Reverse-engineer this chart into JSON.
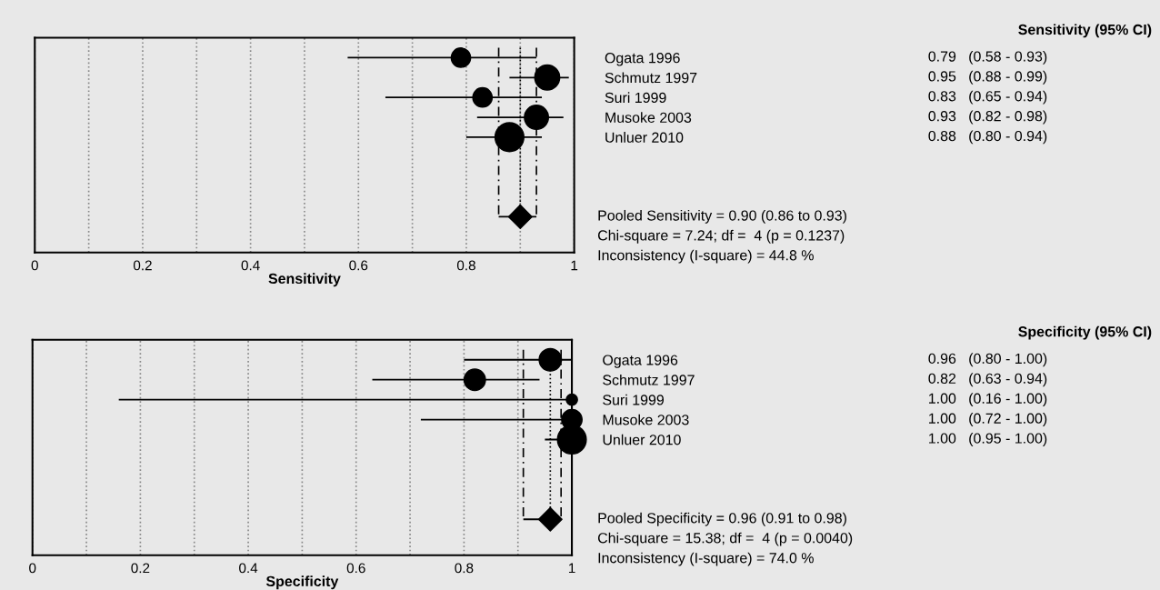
{
  "chart_data": [
    {
      "type": "bubble",
      "orientation": "horizontal",
      "xlabel": "Sensitivity",
      "categories": [
        "Ogata 1996",
        "Schmutz 1997",
        "Suri 1999",
        "Musoke 2003",
        "Unluer 2010",
        null,
        null,
        null,
        null
      ],
      "xlim": [
        0,
        1
      ],
      "xticks": [
        0,
        {
          "value": 0.1,
          "label": null
        },
        0.2,
        {
          "value": 0.3,
          "label": null
        },
        0.4,
        {
          "value": 0.5,
          "label": null
        },
        0.6,
        {
          "value": 0.7,
          "label": null
        },
        0.8,
        {
          "value": 0.9,
          "label": null
        },
        1
      ],
      "grid": "x",
      "legend": false,
      "series": [
        {
          "color": "#000000",
          "values": [
            0.79,
            0.95,
            0.83,
            0.93,
            0.88,
            null,
            null,
            null,
            null
          ],
          "sizes": [
            0.45,
            0.75,
            0.45,
            0.7,
            1.0,
            null,
            null,
            null,
            null
          ],
          "errors": [
            [
              0.58,
              0.93
            ],
            [
              0.88,
              0.99
            ],
            [
              0.65,
              0.94
            ],
            [
              0.82,
              0.98
            ],
            [
              0.8,
              0.94
            ],
            null,
            null,
            null,
            null
          ],
          "value_labels": [
            "0.79   (0.58 - 0.93)",
            "0.95   (0.88 - 0.99)",
            "0.83   (0.65 - 0.94)",
            "0.93   (0.82 - 0.98)",
            "0.88   (0.80 - 0.94)",
            null,
            null,
            null,
            null
          ]
        },
        {
          "type": "scatter",
          "marker": "diamond",
          "color": "#000000",
          "values": [
            null,
            null,
            null,
            null,
            null,
            null,
            null,
            null,
            0.9
          ],
          "errors": [
            null,
            null,
            null,
            null,
            null,
            null,
            null,
            null,
            [
              0.86,
              0.93
            ]
          ]
        }
      ],
      "ref_lines": [
        {
          "axis": "x",
          "value": 0.86,
          "line_style": "dashed",
          "color": "#000000"
        },
        {
          "axis": "x",
          "value": 0.9,
          "line_style": "dotted",
          "color": "#000000"
        },
        {
          "axis": "x",
          "value": 0.93,
          "line_style": "dashed",
          "color": "#000000"
        }
      ],
      "annotations": [
        "Sensitivity (95% CI)",
        "Pooled Sensitivity = 0.90 (0.86 to 0.93)",
        "Chi-square = 7.24; df =  4 (p = 0.1237)",
        "Inconsistency (I-square) = 44.8 %"
      ]
    },
    {
      "type": "bubble",
      "orientation": "horizontal",
      "xlabel": "Specificity",
      "categories": [
        "Ogata 1996",
        "Schmutz 1997",
        "Suri 1999",
        "Musoke 2003",
        "Unluer 2010",
        null,
        null,
        null,
        null
      ],
      "xlim": [
        0,
        1
      ],
      "xticks": [
        0,
        {
          "value": 0.1,
          "label": null
        },
        0.2,
        {
          "value": 0.3,
          "label": null
        },
        0.4,
        {
          "value": 0.5,
          "label": null
        },
        0.6,
        {
          "value": 0.7,
          "label": null
        },
        0.8,
        {
          "value": 0.9,
          "label": null
        },
        1
      ],
      "grid": "x",
      "legend": false,
      "series": [
        {
          "color": "#000000",
          "values": [
            0.96,
            0.82,
            1.0,
            1.0,
            1.0,
            null,
            null,
            null,
            null
          ],
          "sizes": [
            0.6,
            0.55,
            0.15,
            0.5,
            1.0,
            null,
            null,
            null,
            null
          ],
          "errors": [
            [
              0.8,
              1.0
            ],
            [
              0.63,
              0.94
            ],
            [
              0.16,
              1.0
            ],
            [
              0.72,
              1.0
            ],
            [
              0.95,
              1.0
            ],
            null,
            null,
            null,
            null
          ],
          "value_labels": [
            "0.96   (0.80 - 1.00)",
            "0.82   (0.63 - 0.94)",
            "1.00   (0.16 - 1.00)",
            "1.00   (0.72 - 1.00)",
            "1.00   (0.95 - 1.00)",
            null,
            null,
            null,
            null
          ]
        },
        {
          "type": "scatter",
          "marker": "diamond",
          "color": "#000000",
          "values": [
            null,
            null,
            null,
            null,
            null,
            null,
            null,
            null,
            0.96
          ],
          "errors": [
            null,
            null,
            null,
            null,
            null,
            null,
            null,
            null,
            [
              0.91,
              0.98
            ]
          ]
        }
      ],
      "ref_lines": [
        {
          "axis": "x",
          "value": 0.91,
          "line_style": "dashed",
          "color": "#000000"
        },
        {
          "axis": "x",
          "value": 0.96,
          "line_style": "dotted",
          "color": "#000000"
        },
        {
          "axis": "x",
          "value": 0.98,
          "line_style": "dashed",
          "color": "#000000"
        }
      ],
      "annotations": [
        "Specificity (95% CI)",
        "Pooled Specificity = 0.96 (0.91 to 0.98)",
        "Chi-square = 15.38; df =  4 (p = 0.0040)",
        "Inconsistency (I-square) = 74.0 %"
      ]
    }
  ]
}
